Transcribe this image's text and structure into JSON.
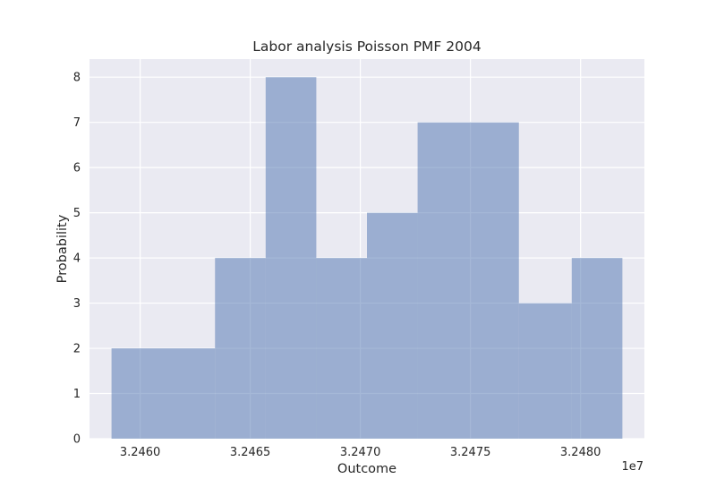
{
  "chart_data": {
    "type": "bar",
    "title": "Labor analysis Poisson PMF 2004",
    "xlabel": "Outcome",
    "ylabel": "Probability",
    "x_offset_label": "1e7",
    "bins": [
      {
        "x0": 3.24587,
        "x1": 3.24634,
        "value": 2
      },
      {
        "x0": 3.24634,
        "x1": 3.24657,
        "value": 4
      },
      {
        "x0": 3.24657,
        "x1": 3.2468,
        "value": 8
      },
      {
        "x0": 3.2468,
        "x1": 3.24703,
        "value": 4
      },
      {
        "x0": 3.24703,
        "x1": 3.24726,
        "value": 5
      },
      {
        "x0": 3.24726,
        "x1": 3.24772,
        "value": 7
      },
      {
        "x0": 3.24772,
        "x1": 3.24796,
        "value": 3
      },
      {
        "x0": 3.24796,
        "x1": 3.24819,
        "value": 4
      }
    ],
    "xlim": [
      3.24577,
      3.24829
    ],
    "ylim": [
      0,
      8.4
    ],
    "x_ticks": [
      {
        "value": 3.246,
        "label": "3.2460"
      },
      {
        "value": 3.2465,
        "label": "3.2465"
      },
      {
        "value": 3.247,
        "label": "3.2470"
      },
      {
        "value": 3.2475,
        "label": "3.2475"
      },
      {
        "value": 3.248,
        "label": "3.2480"
      }
    ],
    "y_ticks": [
      {
        "value": 0,
        "label": "0"
      },
      {
        "value": 1,
        "label": "1"
      },
      {
        "value": 2,
        "label": "2"
      },
      {
        "value": 3,
        "label": "3"
      },
      {
        "value": 4,
        "label": "4"
      },
      {
        "value": 5,
        "label": "5"
      },
      {
        "value": 6,
        "label": "6"
      },
      {
        "value": 7,
        "label": "7"
      },
      {
        "value": 8,
        "label": "8"
      }
    ],
    "grid": true,
    "colors": {
      "plot_background": "#eaeaf2",
      "grid": "#ffffff",
      "bar_fill": "#4c72b0",
      "bar_opacity": "0.5"
    }
  }
}
